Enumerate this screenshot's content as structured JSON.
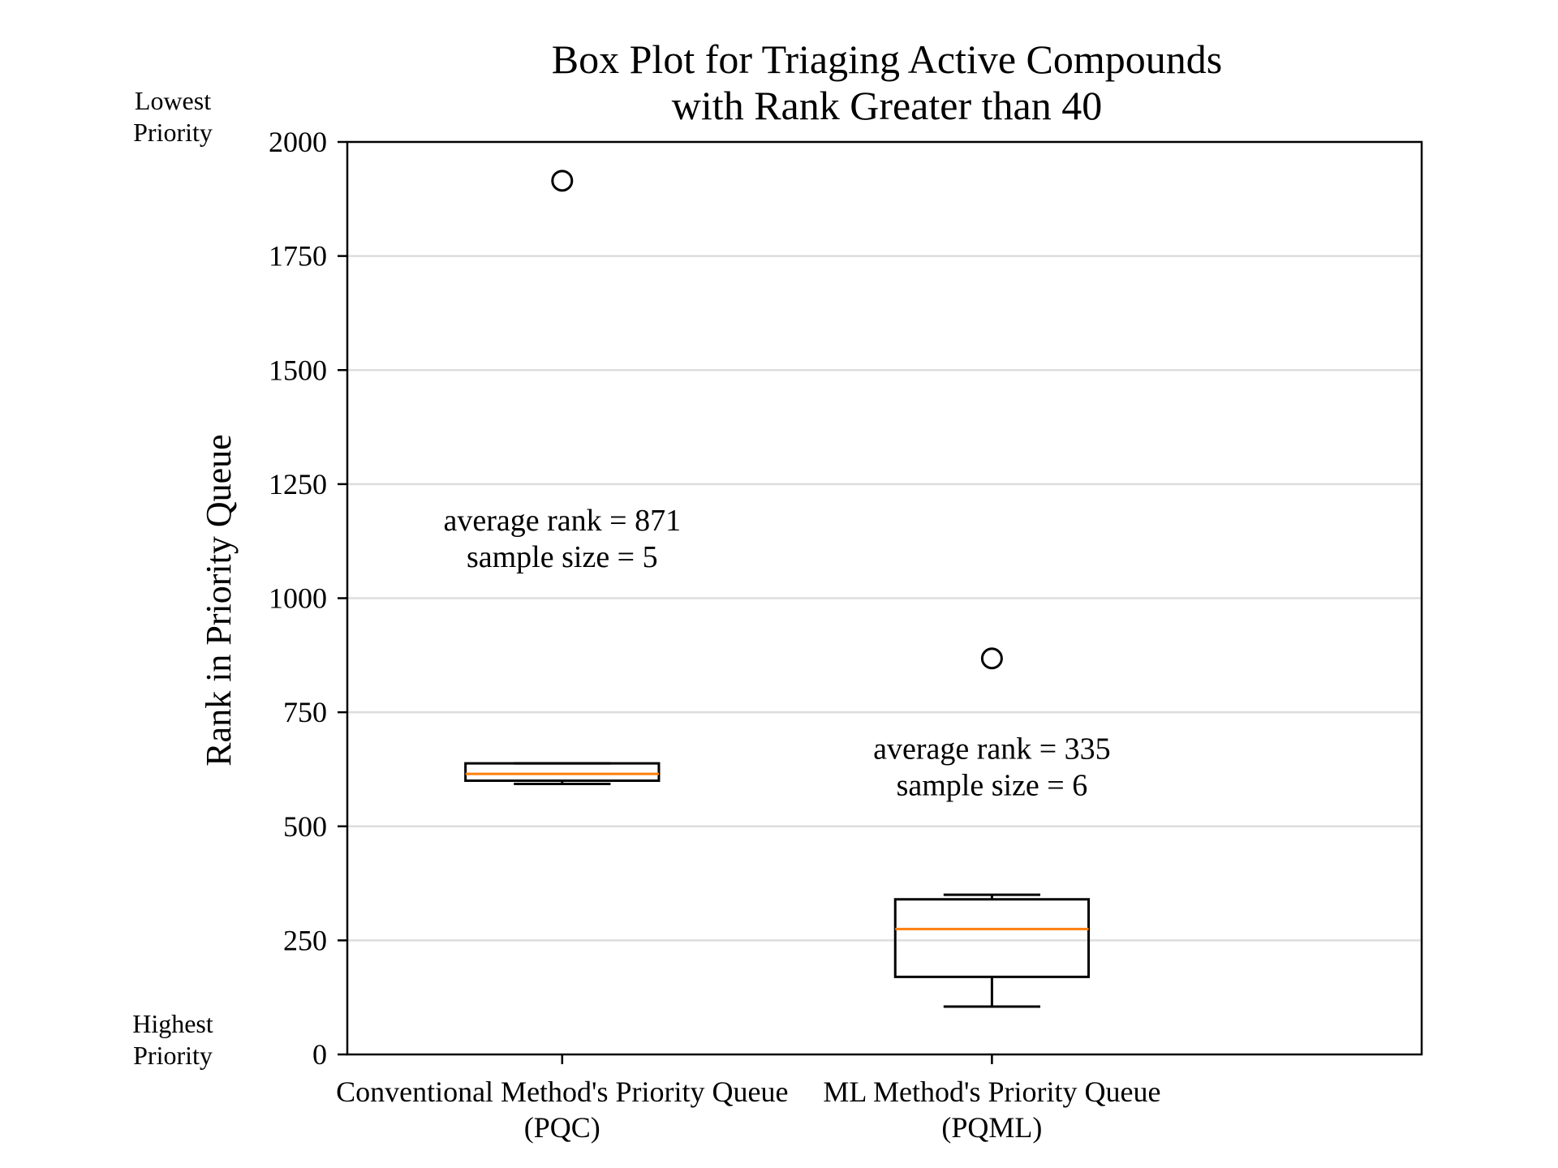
{
  "chart_data": {
    "type": "box",
    "title": [
      "Box Plot for Triaging Active Compounds",
      "with Rank Greater than 40"
    ],
    "xlabel": "",
    "ylabel": "Rank in Priority Queue",
    "ylim": [
      0,
      2000
    ],
    "yticks": [
      0,
      250,
      500,
      750,
      1000,
      1250,
      1500,
      1750,
      2000
    ],
    "grid": "horizontal",
    "top_note": [
      "Lowest",
      "Priority"
    ],
    "bottom_note": [
      "Highest",
      "Priority"
    ],
    "boxes": [
      {
        "label": [
          "Conventional Method's Priority Queue",
          "(PQC)"
        ],
        "whisker_low": 593,
        "q1": 600,
        "median": 615,
        "q3": 638,
        "whisker_high": 638,
        "fliers": [
          1915
        ],
        "annotation": [
          "average rank = 871",
          "sample size = 5"
        ],
        "annotation_y": 1070
      },
      {
        "label": [
          "ML Method's Priority Queue",
          "(PQML)"
        ],
        "whisker_low": 105,
        "q1": 170,
        "median": 275,
        "q3": 340,
        "whisker_high": 350,
        "fliers": [
          868
        ],
        "annotation": [
          "average rank = 335",
          "sample size = 6"
        ],
        "annotation_y": 570
      }
    ],
    "colors": {
      "box": "#000000",
      "median": "#ff7f0e",
      "grid": "#dddddd"
    }
  }
}
